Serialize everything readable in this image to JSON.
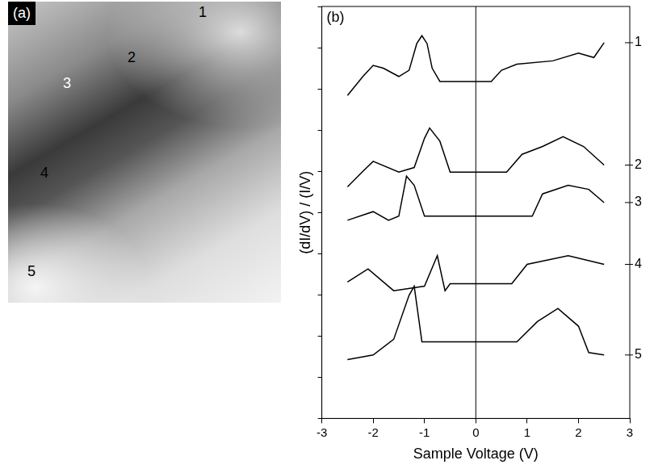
{
  "image_panel": {
    "label": "(a)",
    "markers": [
      "1",
      "2",
      "3",
      "4",
      "5"
    ]
  },
  "chart_data": {
    "type": "line",
    "panel_label": "(b)",
    "x_label": "Sample Voltage (V)",
    "y_label": "(dI/dV) / (I/V)",
    "xlim": [
      -3,
      3
    ],
    "xticks": [
      -3,
      -2,
      -1,
      0,
      1,
      2,
      3
    ],
    "ylim": [
      0,
      10
    ],
    "yticks": [
      0,
      1,
      2,
      3,
      4,
      5,
      6,
      7,
      8,
      9,
      10
    ],
    "tick_labels": "x",
    "grid": false,
    "vline": 0,
    "series": [
      {
        "name": "1",
        "color": "#000000",
        "marker": "none",
        "line_style": "solid",
        "x": [
          -2.5,
          -2.2,
          -2.0,
          -1.8,
          -1.5,
          -1.3,
          -1.15,
          -1.05,
          -0.95,
          -0.85,
          -0.7,
          0.3,
          0.5,
          0.8,
          1.5,
          2.0,
          2.3,
          2.5
        ],
        "values": [
          7.84,
          8.3,
          8.57,
          8.5,
          8.3,
          8.45,
          9.1,
          9.29,
          9.1,
          8.5,
          8.18,
          8.18,
          8.45,
          8.6,
          8.68,
          8.87,
          8.76,
          9.12
        ]
      },
      {
        "name": "2",
        "color": "#000000",
        "marker": "none",
        "line_style": "solid",
        "x": [
          -2.5,
          -2.2,
          -2.0,
          -1.5,
          -1.2,
          -1.0,
          -0.9,
          -0.7,
          -0.5,
          0.6,
          0.9,
          1.3,
          1.7,
          2.1,
          2.5
        ],
        "values": [
          5.62,
          6.0,
          6.24,
          5.98,
          6.09,
          6.8,
          7.05,
          6.73,
          5.98,
          5.98,
          6.41,
          6.6,
          6.84,
          6.6,
          6.15
        ]
      },
      {
        "name": "3",
        "color": "#000000",
        "marker": "none",
        "line_style": "solid",
        "x": [
          -2.5,
          -2.0,
          -1.7,
          -1.5,
          -1.35,
          -1.2,
          -1.0,
          1.1,
          1.3,
          1.8,
          2.2,
          2.5
        ],
        "values": [
          4.81,
          5.02,
          4.81,
          4.91,
          5.88,
          5.66,
          4.91,
          4.91,
          5.45,
          5.66,
          5.56,
          5.24
        ]
      },
      {
        "name": "4",
        "color": "#000000",
        "marker": "none",
        "line_style": "solid",
        "x": [
          -2.5,
          -2.1,
          -1.6,
          -1.0,
          -0.75,
          -0.6,
          -0.5,
          0.7,
          1.0,
          1.8,
          2.5
        ],
        "values": [
          3.31,
          3.63,
          3.1,
          3.21,
          3.95,
          3.1,
          3.27,
          3.27,
          3.74,
          3.95,
          3.74
        ]
      },
      {
        "name": "5",
        "color": "#000000",
        "marker": "none",
        "line_style": "solid",
        "x": [
          -2.5,
          -2.0,
          -1.6,
          -1.3,
          -1.2,
          -1.05,
          0.8,
          1.2,
          1.6,
          2.0,
          2.2,
          2.5
        ],
        "values": [
          1.43,
          1.54,
          1.92,
          2.99,
          3.21,
          1.86,
          1.86,
          2.35,
          2.67,
          2.24,
          1.6,
          1.54
        ]
      }
    ]
  }
}
